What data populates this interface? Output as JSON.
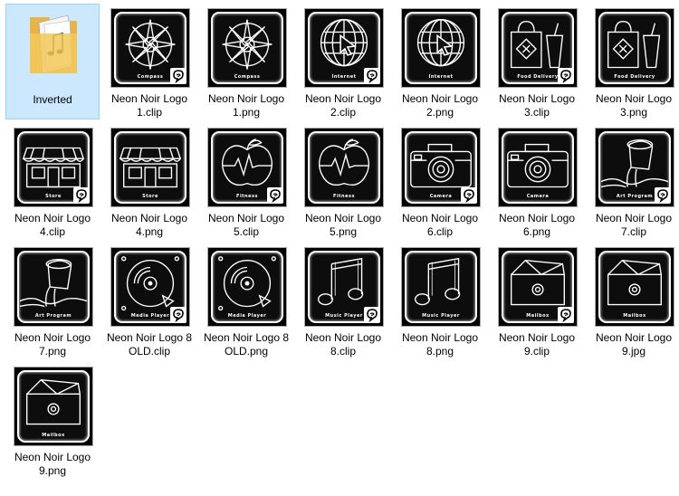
{
  "view": "explorer-large-icons",
  "folder": {
    "label": "Inverted",
    "icon": "folder-music-icon"
  },
  "files": [
    {
      "label": "Neon Noir Logo 1.clip",
      "icon": "compass-icon",
      "caption": "Compass",
      "badge": true
    },
    {
      "label": "Neon Noir Logo 1.png",
      "icon": "compass-icon",
      "caption": "Compass",
      "badge": false
    },
    {
      "label": "Neon Noir Logo 2.clip",
      "icon": "globe-cursor-icon",
      "caption": "Internet",
      "badge": true
    },
    {
      "label": "Neon Noir Logo 2.png",
      "icon": "globe-cursor-icon",
      "caption": "Internet",
      "badge": false
    },
    {
      "label": "Neon Noir Logo 3.clip",
      "icon": "food-bag-icon",
      "caption": "Food Delivery",
      "badge": true
    },
    {
      "label": "Neon Noir Logo 3.png",
      "icon": "food-bag-icon",
      "caption": "Food Delivery",
      "badge": false
    },
    {
      "label": "Neon Noir Logo 4.clip",
      "icon": "store-icon",
      "caption": "Store",
      "badge": true
    },
    {
      "label": "Neon Noir Logo 4.png",
      "icon": "store-icon",
      "caption": "Store",
      "badge": false
    },
    {
      "label": "Neon Noir Logo 5.clip",
      "icon": "apple-pulse-icon",
      "caption": "Fitness",
      "badge": true
    },
    {
      "label": "Neon Noir Logo 5.png",
      "icon": "apple-pulse-icon",
      "caption": "Fitness",
      "badge": false
    },
    {
      "label": "Neon Noir Logo 6.clip",
      "icon": "camera-icon",
      "caption": "Camera",
      "badge": true
    },
    {
      "label": "Neon Noir Logo 6.png",
      "icon": "camera-icon",
      "caption": "Camera",
      "badge": false
    },
    {
      "label": "Neon Noir Logo 7.clip",
      "icon": "paint-bucket-icon",
      "caption": "Art Program",
      "badge": true
    },
    {
      "label": "Neon Noir Logo 7.png",
      "icon": "paint-bucket-icon",
      "caption": "Art Program",
      "badge": false
    },
    {
      "label": "Neon Noir Logo 8 OLD.clip",
      "icon": "disc-icon",
      "caption": "Media Player",
      "badge": true
    },
    {
      "label": "Neon Noir Logo 8 OLD.png",
      "icon": "disc-icon",
      "caption": "Media Player",
      "badge": false
    },
    {
      "label": "Neon Noir Logo 8.clip",
      "icon": "music-note-icon",
      "caption": "Music Player",
      "badge": true
    },
    {
      "label": "Neon Noir Logo 8.png",
      "icon": "music-note-icon",
      "caption": "Music Player",
      "badge": false
    },
    {
      "label": "Neon Noir Logo 9.clip",
      "icon": "mailbox-icon",
      "caption": "Mailbox",
      "badge": true
    },
    {
      "label": "Neon Noir Logo 9.jpg",
      "icon": "mailbox-icon",
      "caption": "Mailbox",
      "badge": false
    },
    {
      "label": "Neon Noir Logo 9.png",
      "icon": "mailbox-icon",
      "caption": "Mailbox",
      "badge": false
    }
  ],
  "colors": {
    "selection_bg": "#cce8ff",
    "selection_border": "#99d1ff",
    "thumb_bg": "#000000",
    "neon": "#ffffff"
  }
}
